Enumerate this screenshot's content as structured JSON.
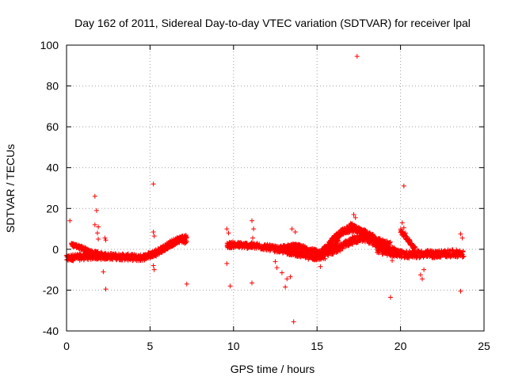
{
  "chart_data": {
    "type": "scatter",
    "title": "Day 162 of 2011, Sidereal Day-to-day VTEC variation (SDTVAR) for receiver lpal",
    "xlabel": "GPS time / hours",
    "ylabel": "SDTVAR / TECUs",
    "xlim": [
      0,
      25
    ],
    "ylim": [
      -40,
      100
    ],
    "xticks": [
      0,
      5,
      10,
      15,
      20,
      25
    ],
    "yticks": [
      -40,
      -20,
      0,
      20,
      40,
      60,
      80,
      100
    ],
    "grid": true,
    "marker": "+",
    "colors": {
      "points": "#ff0000",
      "axis": "#000000",
      "grid": "#a0a0a0"
    },
    "series": [
      {
        "name": "SDTVAR",
        "bands": [
          {
            "x": [
              0.0,
              0.4,
              0.8,
              1.2,
              1.6,
              2.0,
              2.4,
              2.8,
              3.2,
              3.6,
              4.0,
              4.4,
              4.8,
              5.2,
              5.6,
              6.0,
              6.4,
              6.8,
              7.2
            ],
            "y": [
              -4.5,
              -4.0,
              -3.8,
              -3.6,
              -3.4,
              -3.5,
              -3.4,
              -3.5,
              -3.7,
              -3.8,
              -4.0,
              -4.2,
              -3.5,
              -2.0,
              -0.5,
              1.5,
              3.5,
              5.0,
              4.0
            ],
            "spread": 1.6
          },
          {
            "x": [
              0.3,
              0.6,
              0.9,
              1.2,
              1.5,
              1.8,
              2.1,
              2.4
            ],
            "y": [
              2.5,
              1.5,
              0.8,
              -0.5,
              -1.5,
              -2.0,
              -2.5,
              -3.0
            ],
            "spread": 1.0
          },
          {
            "x": [
              5.2,
              5.6,
              6.0,
              6.4,
              6.8,
              7.2
            ],
            "y": [
              -3.0,
              -1.0,
              1.0,
              3.0,
              5.0,
              6.0
            ],
            "spread": 1.2
          },
          {
            "x": [
              9.6,
              10.0,
              10.5,
              11.0,
              11.5,
              12.0,
              12.5,
              13.0,
              13.5,
              14.0,
              14.5,
              15.0,
              15.5
            ],
            "y": [
              2.0,
              2.2,
              2.0,
              1.8,
              1.5,
              1.0,
              0.2,
              -0.6,
              -1.5,
              -2.5,
              -3.5,
              -4.0,
              -3.5
            ],
            "spread": 1.5
          },
          {
            "x": [
              12.8,
              13.2,
              13.6,
              14.0,
              14.4,
              14.8,
              15.2,
              15.6,
              16.0,
              16.3
            ],
            "y": [
              0.5,
              1.0,
              1.5,
              1.0,
              0.0,
              -1.0,
              -2.0,
              -1.0,
              2.0,
              5.0
            ],
            "spread": 1.3
          },
          {
            "x": [
              14.8,
              15.2,
              15.6,
              16.0,
              16.4,
              16.8,
              17.2,
              17.6,
              18.0,
              18.4
            ],
            "y": [
              -4.0,
              -2.0,
              1.0,
              5.0,
              8.0,
              9.5,
              10.0,
              9.0,
              7.5,
              6.0
            ],
            "spread": 1.6
          },
          {
            "x": [
              15.6,
              16.0,
              16.4,
              16.8,
              17.2,
              17.6,
              18.0,
              18.4,
              18.8,
              19.2,
              19.6,
              20.0
            ],
            "y": [
              -2.0,
              -0.5,
              1.0,
              3.0,
              4.5,
              5.5,
              5.0,
              3.5,
              2.0,
              0.5,
              -1.0,
              -2.0
            ],
            "spread": 1.8
          },
          {
            "x": [
              17.0,
              17.4,
              17.8,
              18.2,
              18.6,
              19.0,
              19.4
            ],
            "y": [
              12.0,
              10.0,
              8.0,
              6.0,
              4.5,
              3.5,
              2.5
            ],
            "spread": 1.2
          },
          {
            "x": [
              18.6,
              19.0,
              19.4,
              19.8,
              20.2,
              20.6,
              21.0,
              21.5,
              22.0,
              22.5,
              23.0,
              23.5,
              23.8
            ],
            "y": [
              0.0,
              -1.0,
              -1.5,
              -2.0,
              -2.5,
              -2.5,
              -2.5,
              -2.2,
              -2.5,
              -2.2,
              -2.0,
              -2.0,
              -2.5
            ],
            "spread": 1.8
          },
          {
            "x": [
              20.0,
              20.3,
              20.6,
              20.9
            ],
            "y": [
              9.0,
              6.0,
              3.0,
              0.0
            ],
            "spread": 1.0
          }
        ],
        "points": [
          [
            0.2,
            14.0
          ],
          [
            1.7,
            26.0
          ],
          [
            1.8,
            19.0
          ],
          [
            1.7,
            12.0
          ],
          [
            1.9,
            11.0
          ],
          [
            1.85,
            8.0
          ],
          [
            1.9,
            5.0
          ],
          [
            2.2,
            -11.0
          ],
          [
            2.35,
            -19.5
          ],
          [
            2.35,
            4.5
          ],
          [
            2.3,
            5.5
          ],
          [
            5.2,
            32.0
          ],
          [
            5.2,
            8.5
          ],
          [
            5.25,
            6.5
          ],
          [
            5.2,
            -8.0
          ],
          [
            5.25,
            -10.0
          ],
          [
            7.2,
            -17.0
          ],
          [
            9.6,
            10.0
          ],
          [
            9.7,
            8.0
          ],
          [
            9.6,
            -7.0
          ],
          [
            9.8,
            -18.0
          ],
          [
            11.1,
            14.0
          ],
          [
            11.2,
            10.0
          ],
          [
            11.15,
            5.5
          ],
          [
            11.1,
            -16.5
          ],
          [
            12.5,
            -6.0
          ],
          [
            12.6,
            -9.0
          ],
          [
            12.9,
            -11.5
          ],
          [
            13.2,
            -14.5
          ],
          [
            13.1,
            -18.5
          ],
          [
            13.4,
            -13.5
          ],
          [
            13.6,
            -35.5
          ],
          [
            13.5,
            10.0
          ],
          [
            13.7,
            8.5
          ],
          [
            17.4,
            94.5
          ],
          [
            17.2,
            17.0
          ],
          [
            17.3,
            15.5
          ],
          [
            19.4,
            -23.5
          ],
          [
            19.5,
            -5.5
          ],
          [
            20.2,
            31.0
          ],
          [
            20.1,
            13.0
          ],
          [
            20.2,
            10.5
          ],
          [
            20.3,
            8.0
          ],
          [
            21.2,
            -12.5
          ],
          [
            21.3,
            -14.5
          ],
          [
            21.4,
            -10.0
          ],
          [
            23.6,
            -20.5
          ],
          [
            23.6,
            7.5
          ],
          [
            23.7,
            5.5
          ],
          [
            15.2,
            -8.5
          ]
        ]
      }
    ]
  }
}
